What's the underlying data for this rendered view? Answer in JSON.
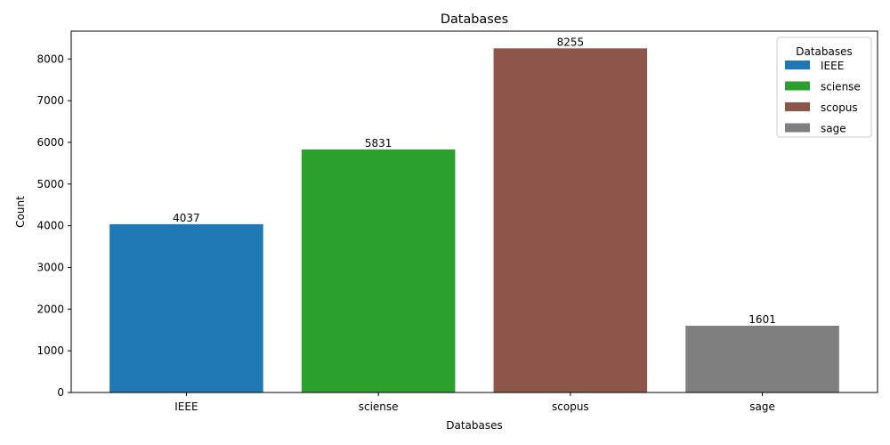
{
  "chart_data": {
    "type": "bar",
    "title": "Databases",
    "xlabel": "Databases",
    "ylabel": "Count",
    "categories": [
      "IEEE",
      "sciense",
      "scopus",
      "sage"
    ],
    "values": [
      4037,
      5831,
      8255,
      1601
    ],
    "data_labels": [
      "4037",
      "5831",
      "8255",
      "1601"
    ],
    "colors": [
      "#1f77b4",
      "#2ca02c",
      "#8c564b",
      "#7f7f7f"
    ],
    "ylim": [
      0,
      8667.75
    ],
    "yticks": [
      0,
      1000,
      2000,
      3000,
      4000,
      5000,
      6000,
      7000,
      8000
    ],
    "grid": false,
    "legend": {
      "title": "Databases",
      "placement": "top-right",
      "entries": [
        "IEEE",
        "sciense",
        "scopus",
        "sage"
      ]
    }
  }
}
